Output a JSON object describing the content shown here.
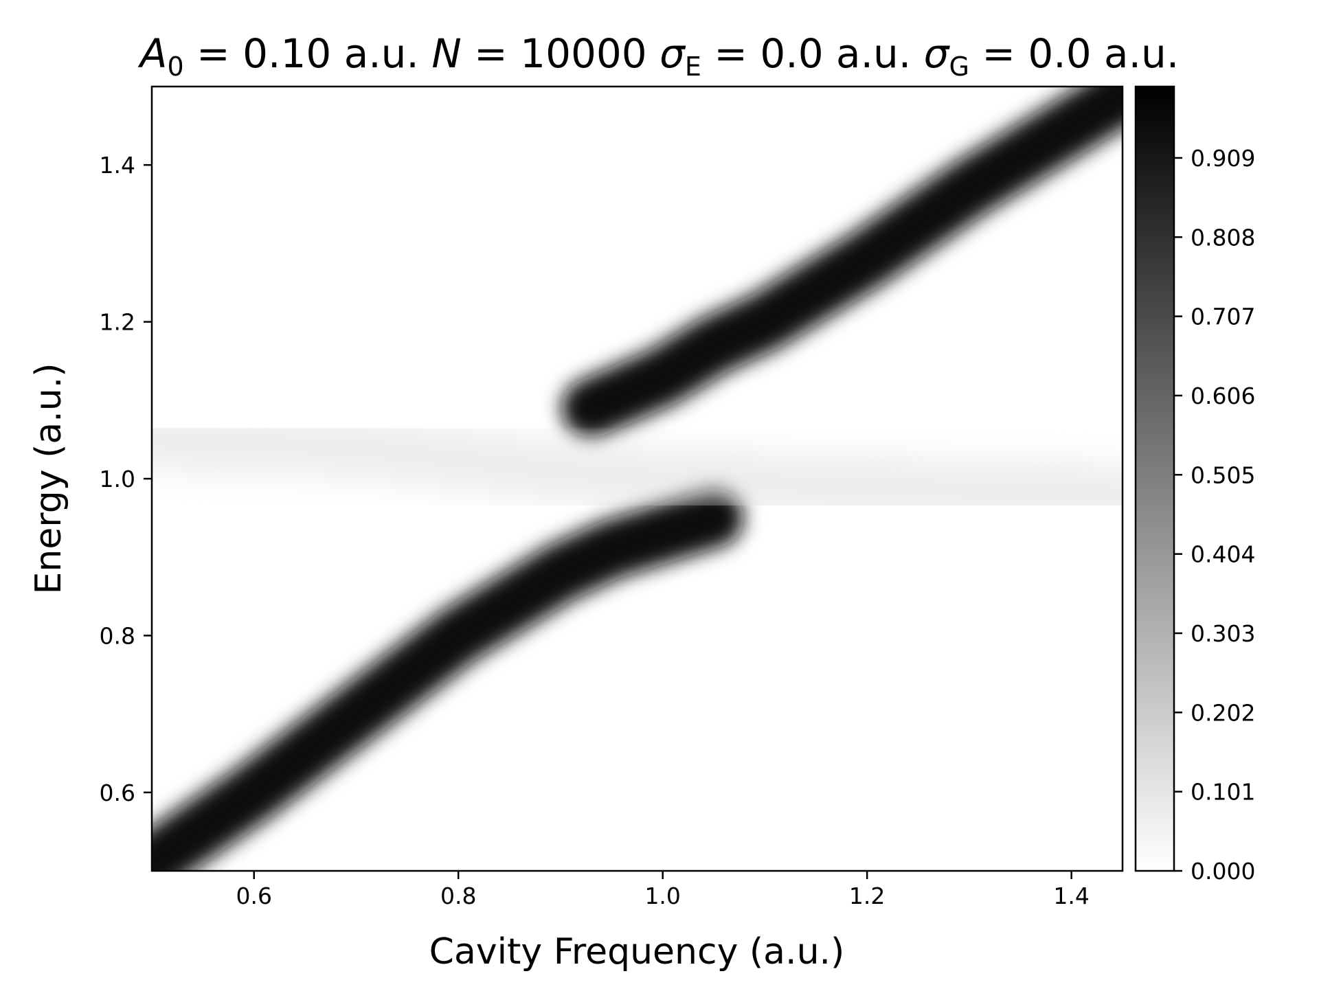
{
  "chart_data": {
    "type": "heatmap",
    "title": {
      "parts": [
        {
          "text": "A",
          "italic": true
        },
        {
          "text": "0",
          "sub": true
        },
        {
          "text": " = 0.10 a.u.  "
        },
        {
          "text": "N",
          "italic": true
        },
        {
          "text": " = 10000  "
        },
        {
          "text": "σ",
          "italic": true
        },
        {
          "text": "E",
          "sub": true
        },
        {
          "text": " = 0.0 a.u.  "
        },
        {
          "text": "σ",
          "italic": true
        },
        {
          "text": "G",
          "sub": true
        },
        {
          "text": " = 0.0 a.u."
        }
      ]
    },
    "xlabel": "Cavity Frequency (a.u.)",
    "ylabel": "Energy (a.u.)",
    "xlim": [
      0.5,
      1.45
    ],
    "ylim": [
      0.5,
      1.5
    ],
    "xticks": [
      0.6,
      0.8,
      1.0,
      1.2,
      1.4
    ],
    "xtick_labels": [
      "0.6",
      "0.8",
      "1.0",
      "1.2",
      "1.4"
    ],
    "yticks": [
      0.6,
      0.8,
      1.0,
      1.2,
      1.4
    ],
    "ytick_labels": [
      "0.6",
      "0.8",
      "1.0",
      "1.2",
      "1.4"
    ],
    "colormap": "gray_r",
    "color_low": "#ffffff",
    "color_high": "#000000",
    "colorbar": {
      "range": [
        0.0,
        1.0
      ],
      "ticks": [
        0.0,
        0.101,
        0.202,
        0.303,
        0.404,
        0.505,
        0.606,
        0.707,
        0.808,
        0.909
      ],
      "tick_labels": [
        "0.000",
        "0.101",
        "0.202",
        "0.303",
        "0.404",
        "0.505",
        "0.606",
        "0.707",
        "0.808",
        "0.909"
      ]
    },
    "grid": false,
    "features": [
      {
        "name": "upper polariton branch",
        "x": [
          0.93,
          1.0,
          1.05,
          1.1,
          1.2,
          1.3,
          1.4,
          1.45
        ],
        "y": [
          1.09,
          1.13,
          1.17,
          1.2,
          1.28,
          1.37,
          1.45,
          1.49
        ]
      },
      {
        "name": "lower polariton branch",
        "x": [
          0.5,
          0.6,
          0.7,
          0.8,
          0.9,
          0.95,
          1.0,
          1.05
        ],
        "y": [
          0.51,
          0.6,
          0.7,
          0.8,
          0.88,
          0.91,
          0.93,
          0.95
        ]
      },
      {
        "name": "faint band",
        "x": [
          0.5,
          0.7,
          0.9,
          1.0,
          1.2,
          1.45
        ],
        "y": [
          1.05,
          1.04,
          1.01,
          1.0,
          0.99,
          0.98
        ]
      }
    ]
  }
}
